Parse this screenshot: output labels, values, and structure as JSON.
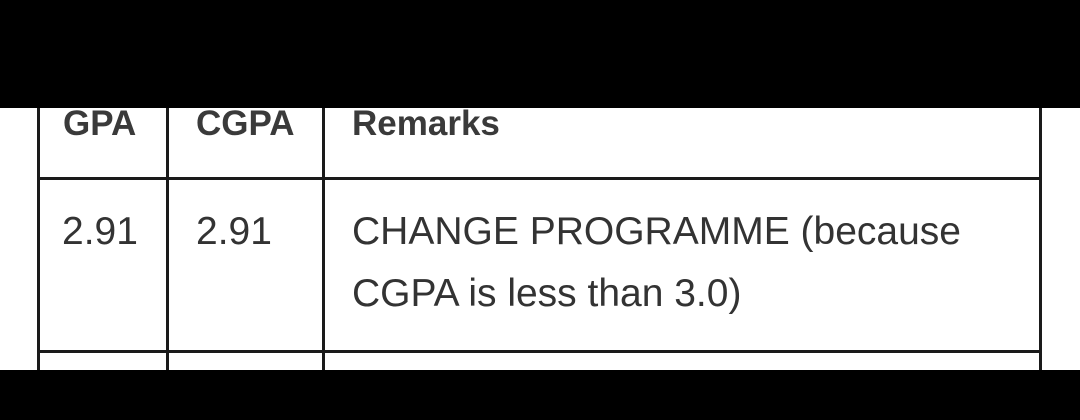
{
  "table": {
    "headers": [
      "GPA",
      "CGPA",
      "Remarks"
    ],
    "rows": [
      {
        "gpa": "2.91",
        "cgpa": "2.91",
        "remarks_line1": "CHANGE PROGRAMME (because",
        "remarks_line2": "CGPA is less than 3.0)"
      }
    ]
  }
}
